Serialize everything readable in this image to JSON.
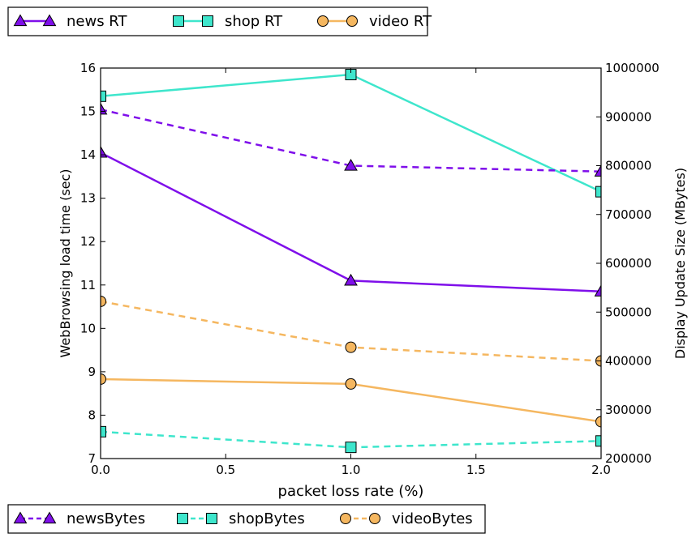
{
  "chart_data": {
    "type": "line",
    "x": [
      0.0,
      1.0,
      2.0
    ],
    "xlabel": "packet loss rate (%)",
    "ylabel_left": "WebBrowsing load time (sec)",
    "ylabel_right": "Display Update Size (MBytes)",
    "xlim": [
      0.0,
      2.0
    ],
    "ylim_left": [
      7,
      16
    ],
    "ylim_right": [
      200000,
      1000000
    ],
    "xticks": [
      "0.0",
      "0.5",
      "1.0",
      "1.5",
      "2.0"
    ],
    "yticks_left": [
      "7",
      "8",
      "9",
      "10",
      "11",
      "12",
      "13",
      "14",
      "15",
      "16"
    ],
    "yticks_right": [
      "200000",
      "300000",
      "400000",
      "500000",
      "600000",
      "700000",
      "800000",
      "900000",
      "1000000"
    ],
    "legend_top_placement": "top-left, above plot",
    "legend_bottom_placement": "bottom-left, below plot",
    "series": [
      {
        "name": "news RT",
        "axis": "left",
        "style": "solid",
        "marker": "triangle",
        "color": "#7f0fea",
        "values": [
          14.05,
          11.1,
          10.85
        ]
      },
      {
        "name": "shop RT",
        "axis": "left",
        "style": "solid",
        "marker": "square",
        "color": "#3ee6cc",
        "values": [
          15.35,
          15.85,
          13.15
        ]
      },
      {
        "name": "video RT",
        "axis": "left",
        "style": "solid",
        "marker": "circle",
        "color": "#f5b760",
        "values": [
          8.83,
          8.72,
          7.85
        ]
      },
      {
        "name": "newsBytes",
        "axis": "right",
        "style": "dashed",
        "marker": "triangle",
        "color": "#7f0fea",
        "values": [
          915000,
          800000,
          788000
        ]
      },
      {
        "name": "shopBytes",
        "axis": "right",
        "style": "dashed",
        "marker": "square",
        "color": "#3ee6cc",
        "values": [
          255000,
          223000,
          236000
        ]
      },
      {
        "name": "videoBytes",
        "axis": "right",
        "style": "dashed",
        "marker": "circle",
        "color": "#f5b760",
        "values": [
          522000,
          428000,
          400000
        ]
      }
    ]
  }
}
